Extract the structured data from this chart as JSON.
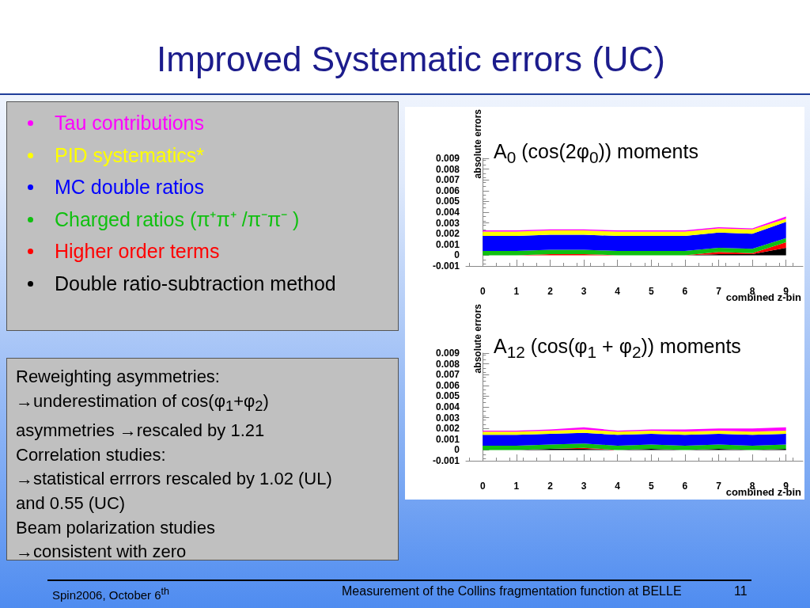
{
  "chart_data": [
    {
      "type": "area",
      "title": "Improved Systematic errors (UC)",
      "subtitle": "A$_{0}$ (cos(2φ$_{0}$)) moments",
      "xlabel": "combined z-bin",
      "ylabel": "absolute errors",
      "stacked": true,
      "legend": "left",
      "grid": false,
      "marker": "none",
      "x": [
        0,
        1,
        2,
        3,
        4,
        5,
        6,
        7,
        8,
        9
      ],
      "xlim": [
        -0.5,
        9.5
      ],
      "xticks": [
        0,
        1,
        2,
        3,
        4,
        5,
        6,
        7,
        8,
        9
      ],
      "ylim": [
        -0.001,
        0.009
      ],
      "yticks": [
        -0.001,
        0,
        0.001,
        0.002,
        0.003,
        0.004,
        0.005,
        0.006,
        0.007,
        0.008,
        0.009
      ],
      "series": [
        {
          "name": "Double ratio-subtraction method",
          "color": "#000000",
          "values": [
            0,
            0,
            0,
            0,
            0,
            0,
            0,
            0.0001,
            0.0001,
            0.0007
          ]
        },
        {
          "name": "Higher order terms",
          "color": "#ff0000",
          "values": [
            0,
            0,
            0.0001,
            0.0001,
            0,
            0,
            0,
            0.0002,
            0.0001,
            0.0005
          ]
        },
        {
          "name": "Charged ratios (π⁺π⁺ /π⁻π⁻ )",
          "color": "#10c010",
          "values": [
            0.0004,
            0.0004,
            0.0004,
            0.0004,
            0.0004,
            0.0004,
            0.0004,
            0.0004,
            0.0004,
            0.0004
          ]
        },
        {
          "name": "MC double ratios",
          "color": "#0000ff",
          "values": [
            0.0014,
            0.0014,
            0.0014,
            0.0014,
            0.0014,
            0.0014,
            0.0014,
            0.0014,
            0.0014,
            0.0015
          ]
        },
        {
          "name": "PID systematics*",
          "color": "#ffff00",
          "values": [
            0.0004,
            0.0004,
            0.0004,
            0.0004,
            0.0004,
            0.0004,
            0.0004,
            0.0004,
            0.0004,
            0.0003
          ]
        },
        {
          "name": "Tau contributions",
          "color": "#ff00ff",
          "values": [
            0.0001,
            0.0001,
            0.0001,
            0.0001,
            0.0001,
            0.0001,
            0.0001,
            0.0001,
            0.0001,
            0.0002
          ]
        }
      ],
      "annotations": [
        "Reweighting  asymmetries:",
        "→underestimation of cos(φ$_{1}$+φ$_{2}$)",
        "asymmetries →rescaled by 1.21",
        "Correlation studies:",
        "→statistical errrors rescaled by 1.02 (UL)",
        "and 0.55 (UC)",
        "Beam polarization studies",
        "→consistent with zero",
        "Spin2006, October 6$^{th}$",
        "Measurement of the Collins fragmentation function at BELLE",
        "11"
      ]
    },
    {
      "type": "area",
      "subtitle": "A$_{12}$ (cos(φ$_{1}$ + φ$_{2}$)) moments",
      "xlabel": "combined z-bin",
      "ylabel": "absolute errors",
      "stacked": true,
      "grid": false,
      "marker": "none",
      "x": [
        0,
        1,
        2,
        3,
        4,
        5,
        6,
        7,
        8,
        9
      ],
      "xlim": [
        -0.5,
        9.5
      ],
      "xticks": [
        0,
        1,
        2,
        3,
        4,
        5,
        6,
        7,
        8,
        9
      ],
      "ylim": [
        -0.001,
        0.009
      ],
      "yticks": [
        -0.001,
        0,
        0.001,
        0.002,
        0.003,
        0.004,
        0.005,
        0.006,
        0.007,
        0.008,
        0.009
      ],
      "series": [
        {
          "color": "#000000",
          "values": [
            0,
            0,
            0.0001,
            0.0001,
            0,
            0.0001,
            0,
            0.0001,
            0,
            0.0001
          ]
        },
        {
          "color": "#ff0000",
          "values": [
            0,
            0,
            0,
            0.0001,
            0,
            0,
            0,
            0,
            0,
            0
          ]
        },
        {
          "color": "#10c010",
          "values": [
            0.0004,
            0.0004,
            0.0004,
            0.0004,
            0.0004,
            0.0004,
            0.0004,
            0.0004,
            0.0004,
            0.0004
          ]
        },
        {
          "color": "#0000ff",
          "values": [
            0.001,
            0.001,
            0.001,
            0.001,
            0.001,
            0.001,
            0.001,
            0.001,
            0.001,
            0.001
          ]
        },
        {
          "color": "#ffff00",
          "values": [
            0.0003,
            0.0003,
            0.0003,
            0.0003,
            0.0003,
            0.0003,
            0.0003,
            0.0003,
            0.0003,
            0.0003
          ]
        },
        {
          "color": "#ff00ff",
          "values": [
            0.0001,
            0.0001,
            0.0001,
            0.0002,
            0.0001,
            0.0001,
            0.0002,
            0.0002,
            0.0003,
            0.0003
          ]
        }
      ]
    }
  ]
}
